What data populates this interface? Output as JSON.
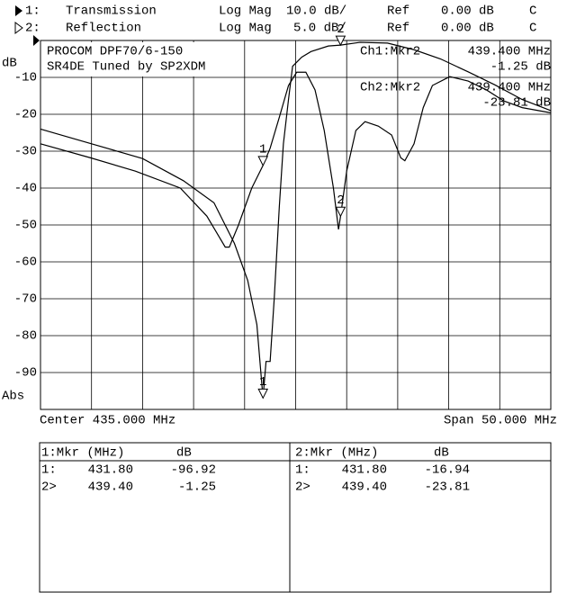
{
  "channels": [
    {
      "id": "1:",
      "format": "Log Mag",
      "scale": "10.0 dB/",
      "ref_label": "Ref",
      "ref": "0.00 dB",
      "coupling": "C"
    },
    {
      "id": "2:",
      "format": "Log Mag",
      "scale": "5.0 dB/",
      "ref_label": "Ref",
      "ref": "0.00 dB",
      "coupling": "C"
    }
  ],
  "chart_data": {
    "type": "line",
    "title": "PROCOM DPF70/6-150",
    "subtitle": "SR4DE Tuned by SP2XDM",
    "ylabel": "dB",
    "ylabel_bottom": "Abs",
    "xlabel_left": "Center 435.000 MHz",
    "xlabel_right": "Span 50.000 MHz",
    "xlim": [
      410,
      460
    ],
    "xticks": [
      410,
      415,
      420,
      425,
      430,
      435,
      440,
      445,
      450,
      455,
      460
    ],
    "ylim": [
      -100,
      0
    ],
    "yticks": [
      -10,
      -20,
      -30,
      -40,
      -50,
      -60,
      -70,
      -80,
      -90
    ],
    "y2lim": [
      -50,
      0
    ],
    "grid": true,
    "series": [
      {
        "name": "Transmission",
        "color": "#000000",
        "x": [
          410,
          415,
          420,
          424,
          427,
          429,
          430.3,
          431.2,
          431.8,
          432.1,
          432.5,
          432.9,
          433.4,
          433.8,
          434.3,
          434.7,
          435.6,
          436.5,
          438.2,
          439.4,
          441.3,
          444,
          446.6,
          449.2,
          451.9,
          454.5,
          457.2,
          460
        ],
        "values": [
          -24,
          -28,
          -32,
          -38,
          -44,
          -55,
          -65,
          -77,
          -96.92,
          -87,
          -87,
          -70,
          -45,
          -28,
          -16,
          -7,
          -4.5,
          -3,
          -1.5,
          -1.25,
          -0.5,
          -0.7,
          -2.5,
          -5,
          -8.5,
          -12,
          -16,
          -19
        ]
      },
      {
        "name": "Reflection",
        "color": "#000000",
        "axis": "y2",
        "x": [
          410,
          414.9,
          419.3,
          423.7,
          426.3,
          428.1,
          428.5,
          429.4,
          430.7,
          431.8,
          432.5,
          433.4,
          434.3,
          435.1,
          436,
          436.9,
          437.8,
          438.7,
          439.2,
          439.4,
          440,
          440.9,
          441.8,
          443.1,
          444.4,
          445.3,
          445.7,
          446.6,
          447.5,
          448.4,
          450.1,
          451.9,
          453.7,
          455.4,
          457.2,
          460
        ],
        "values": [
          -14,
          -15.9,
          -17.7,
          -20,
          -23.8,
          -28,
          -28,
          -25,
          -20,
          -16.94,
          -14.6,
          -10.4,
          -6.1,
          -4.3,
          -4.3,
          -6.7,
          -12.2,
          -20,
          -25.6,
          -23.81,
          -17.7,
          -12.2,
          -11,
          -11.6,
          -12.8,
          -15.9,
          -16.3,
          -14,
          -9.1,
          -6.1,
          -4.9,
          -5.5,
          -6.7,
          -8.2,
          -9.1,
          -9.8
        ]
      }
    ],
    "markers": [
      {
        "label": "1",
        "x": 431.8
      },
      {
        "label": "2",
        "x": 439.4
      }
    ]
  },
  "readouts": [
    {
      "label": "Ch1:Mkr2",
      "freq": "439.400 MHz",
      "value": "-1.25 dB"
    },
    {
      "label": "Ch2:Mkr2",
      "freq": "439.400 MHz",
      "value": "-23.81 dB"
    }
  ],
  "marker_tables": [
    {
      "header": [
        "1:Mkr (MHz)",
        "dB"
      ],
      "rows": [
        [
          "1:",
          "431.80",
          "-96.92"
        ],
        [
          "2>",
          "439.40",
          "-1.25"
        ]
      ]
    },
    {
      "header": [
        "2:Mkr (MHz)",
        "dB"
      ],
      "rows": [
        [
          "1:",
          "431.80",
          "-16.94"
        ],
        [
          "2>",
          "439.40",
          "-23.81"
        ]
      ]
    }
  ]
}
